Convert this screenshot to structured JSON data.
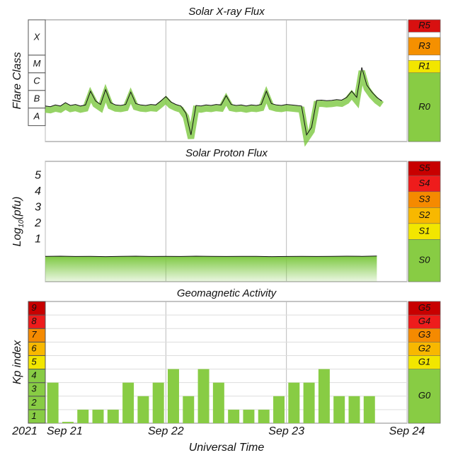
{
  "chart_data": [
    {
      "type": "line",
      "title": "Solar X-ray Flux",
      "ylabel": "Flare Class",
      "log_scale": true,
      "ylim": [
        1.26e-09,
        0.01
      ],
      "xlim": [
        0,
        72
      ],
      "xticks": [
        0,
        24,
        48,
        72
      ],
      "xgrid": true,
      "classes": [
        {
          "label": "A",
          "from": 1e-08,
          "to": 1e-07
        },
        {
          "label": "B",
          "from": 1e-07,
          "to": 1e-06
        },
        {
          "label": "C",
          "from": 1e-06,
          "to": 1e-05
        },
        {
          "label": "M",
          "from": 1e-05,
          "to": 0.0001
        },
        {
          "label": "X",
          "from": 0.0001,
          "to": null
        }
      ],
      "scale": [
        {
          "label": "R0",
          "from": null,
          "to": 1e-05,
          "color": "#88cc44"
        },
        {
          "label": "R1",
          "from": 1e-05,
          "to": 5e-05,
          "color": "#f2e600"
        },
        {
          "label": "R3",
          "from": 0.0001,
          "to": 0.001,
          "color": "#f59000"
        },
        {
          "label": "R5",
          "from": 0.002,
          "to": null,
          "color": "#d81010"
        }
      ],
      "x": [
        0,
        1,
        2,
        3,
        4,
        5,
        6,
        7,
        8,
        9,
        10,
        11,
        12,
        13,
        14,
        15,
        16,
        17,
        18,
        19,
        20,
        21,
        22,
        23,
        24,
        25,
        26,
        27,
        28,
        29,
        30,
        31,
        32,
        33,
        34,
        35,
        36,
        37,
        38,
        39,
        40,
        41,
        42,
        43,
        44,
        45,
        46,
        47,
        48,
        49,
        50,
        51,
        52,
        53,
        54,
        55,
        56,
        57,
        58,
        59,
        60,
        61,
        62,
        63,
        64,
        65,
        66,
        67
      ],
      "series": [
        {
          "color": "#111111",
          "fill": "#7cc840",
          "values": [
            1.3e-07,
            1.2e-07,
            1.5e-07,
            1.3e-07,
            2e-07,
            1.4e-07,
            1.6e-07,
            1.3e-07,
            1.5e-07,
            9e-07,
            2.5e-07,
            1.6e-07,
            1.1e-06,
            2e-07,
            1.5e-07,
            1.4e-07,
            1.6e-07,
            8e-07,
            1.8e-07,
            1.5e-07,
            1.4e-07,
            1.6e-07,
            1.5e-07,
            2.5e-07,
            4.5e-07,
            2.2e-07,
            1.6e-07,
            1.3e-07,
            5e-08,
            3e-09,
            1.4e-07,
            1.3e-07,
            1.5e-07,
            1.4e-07,
            1.6e-07,
            1.5e-07,
            5e-07,
            1.6e-07,
            1.4e-07,
            1.5e-07,
            1.3e-07,
            1.5e-07,
            1.4e-07,
            1.6e-07,
            9e-07,
            1.8e-07,
            1.5e-07,
            1.4e-07,
            1.6e-07,
            1.5e-07,
            1.4e-07,
            1.3e-07,
            3e-09,
            8e-09,
            2.7e-07,
            2.8e-07,
            2.6e-07,
            2.7e-07,
            3e-07,
            2.8e-07,
            4e-07,
            9e-07,
            4e-07,
            2e-05,
            2e-06,
            8e-07,
            4e-07,
            2.5e-07
          ]
        }
      ]
    },
    {
      "type": "area",
      "title": "Solar Proton Flux",
      "ylabel_parts": [
        "Log",
        "10",
        "(pfu)"
      ],
      "ylim": [
        -1.65,
        5.9
      ],
      "yticks": [
        1,
        2,
        3,
        4,
        5
      ],
      "xlim": [
        0,
        72
      ],
      "xticks": [
        0,
        24,
        48,
        72
      ],
      "xgrid": true,
      "scale": [
        {
          "label": "S0",
          "from": null,
          "to": 1,
          "color": "#88cc44"
        },
        {
          "label": "S1",
          "from": 1,
          "to": 2,
          "color": "#f2e600"
        },
        {
          "label": "S2",
          "from": 2,
          "to": 3,
          "color": "#f8b800"
        },
        {
          "label": "S3",
          "from": 3,
          "to": 4,
          "color": "#f58a00"
        },
        {
          "label": "S4",
          "from": 4,
          "to": 5,
          "color": "#ee1c1c"
        },
        {
          "label": "S5",
          "from": 5,
          "to": null,
          "color": "#c80000"
        }
      ],
      "x": [
        0,
        3,
        6,
        9,
        12,
        15,
        18,
        21,
        24,
        27,
        30,
        33,
        36,
        39,
        42,
        45,
        48,
        51,
        54,
        57,
        60,
        63,
        66
      ],
      "series": [
        {
          "color": "#111111",
          "fill": "#7cc840",
          "values": [
            -0.06,
            -0.05,
            -0.07,
            -0.06,
            -0.08,
            -0.06,
            -0.05,
            -0.07,
            -0.06,
            -0.07,
            -0.05,
            -0.06,
            -0.07,
            -0.06,
            -0.06,
            -0.08,
            -0.07,
            -0.06,
            -0.07,
            -0.06,
            -0.05,
            -0.06,
            -0.04
          ]
        }
      ]
    },
    {
      "type": "bar",
      "title": "Geomagnetic Activity",
      "ylabel": "Kp index",
      "xlabel": "Universal Time",
      "year": "2021",
      "ylim": [
        0,
        9
      ],
      "yticks": [
        1,
        2,
        3,
        4,
        5,
        6,
        7,
        8
      ],
      "ygrid": true,
      "xlim": [
        0,
        72
      ],
      "xgrid": true,
      "xticks": [
        {
          "value": 0,
          "label": "Sep 21"
        },
        {
          "value": 24,
          "label": "Sep 22"
        },
        {
          "value": 48,
          "label": "Sep 23"
        },
        {
          "value": 72,
          "label": "Sep 24"
        }
      ],
      "levels": [
        {
          "label": "1",
          "from": 0,
          "to": 1,
          "color": "#88cc44"
        },
        {
          "label": "2",
          "from": 1,
          "to": 2,
          "color": "#88cc44"
        },
        {
          "label": "3",
          "from": 2,
          "to": 3,
          "color": "#88cc44"
        },
        {
          "label": "4",
          "from": 3,
          "to": 4,
          "color": "#88cc44"
        },
        {
          "label": "5",
          "from": 4,
          "to": 5,
          "color": "#f2e600"
        },
        {
          "label": "6",
          "from": 5,
          "to": 6,
          "color": "#f8b800"
        },
        {
          "label": "7",
          "from": 6,
          "to": 7,
          "color": "#f58a00"
        },
        {
          "label": "8",
          "from": 7,
          "to": 8,
          "color": "#ee1c1c"
        },
        {
          "label": "9",
          "from": 8,
          "to": 9,
          "color": "#c80000"
        }
      ],
      "scale": [
        {
          "label": "G0",
          "from": 0,
          "to": 4,
          "color": "#88cc44"
        },
        {
          "label": "G1",
          "from": 4,
          "to": 5,
          "color": "#f2e600"
        },
        {
          "label": "G2",
          "from": 5,
          "to": 6,
          "color": "#f8b800"
        },
        {
          "label": "G3",
          "from": 6,
          "to": 7,
          "color": "#f58a00"
        },
        {
          "label": "G4",
          "from": 7,
          "to": 8,
          "color": "#ee1c1c"
        },
        {
          "label": "G5",
          "from": 8,
          "to": 9,
          "color": "#c80000"
        }
      ],
      "bar_width": 2.25,
      "color": "#88cc44",
      "x": [
        1.5,
        4.5,
        7.5,
        10.5,
        13.5,
        16.5,
        19.5,
        22.5,
        25.5,
        28.5,
        31.5,
        34.5,
        37.5,
        40.5,
        43.5,
        46.5,
        49.5,
        52.5,
        55.5,
        58.5,
        61.5,
        64.5
      ],
      "values": [
        3,
        0.1,
        1,
        1,
        1,
        3,
        2,
        3,
        4,
        2,
        4,
        3,
        1,
        1,
        1,
        2,
        3,
        3,
        4,
        2,
        2,
        2
      ]
    }
  ]
}
